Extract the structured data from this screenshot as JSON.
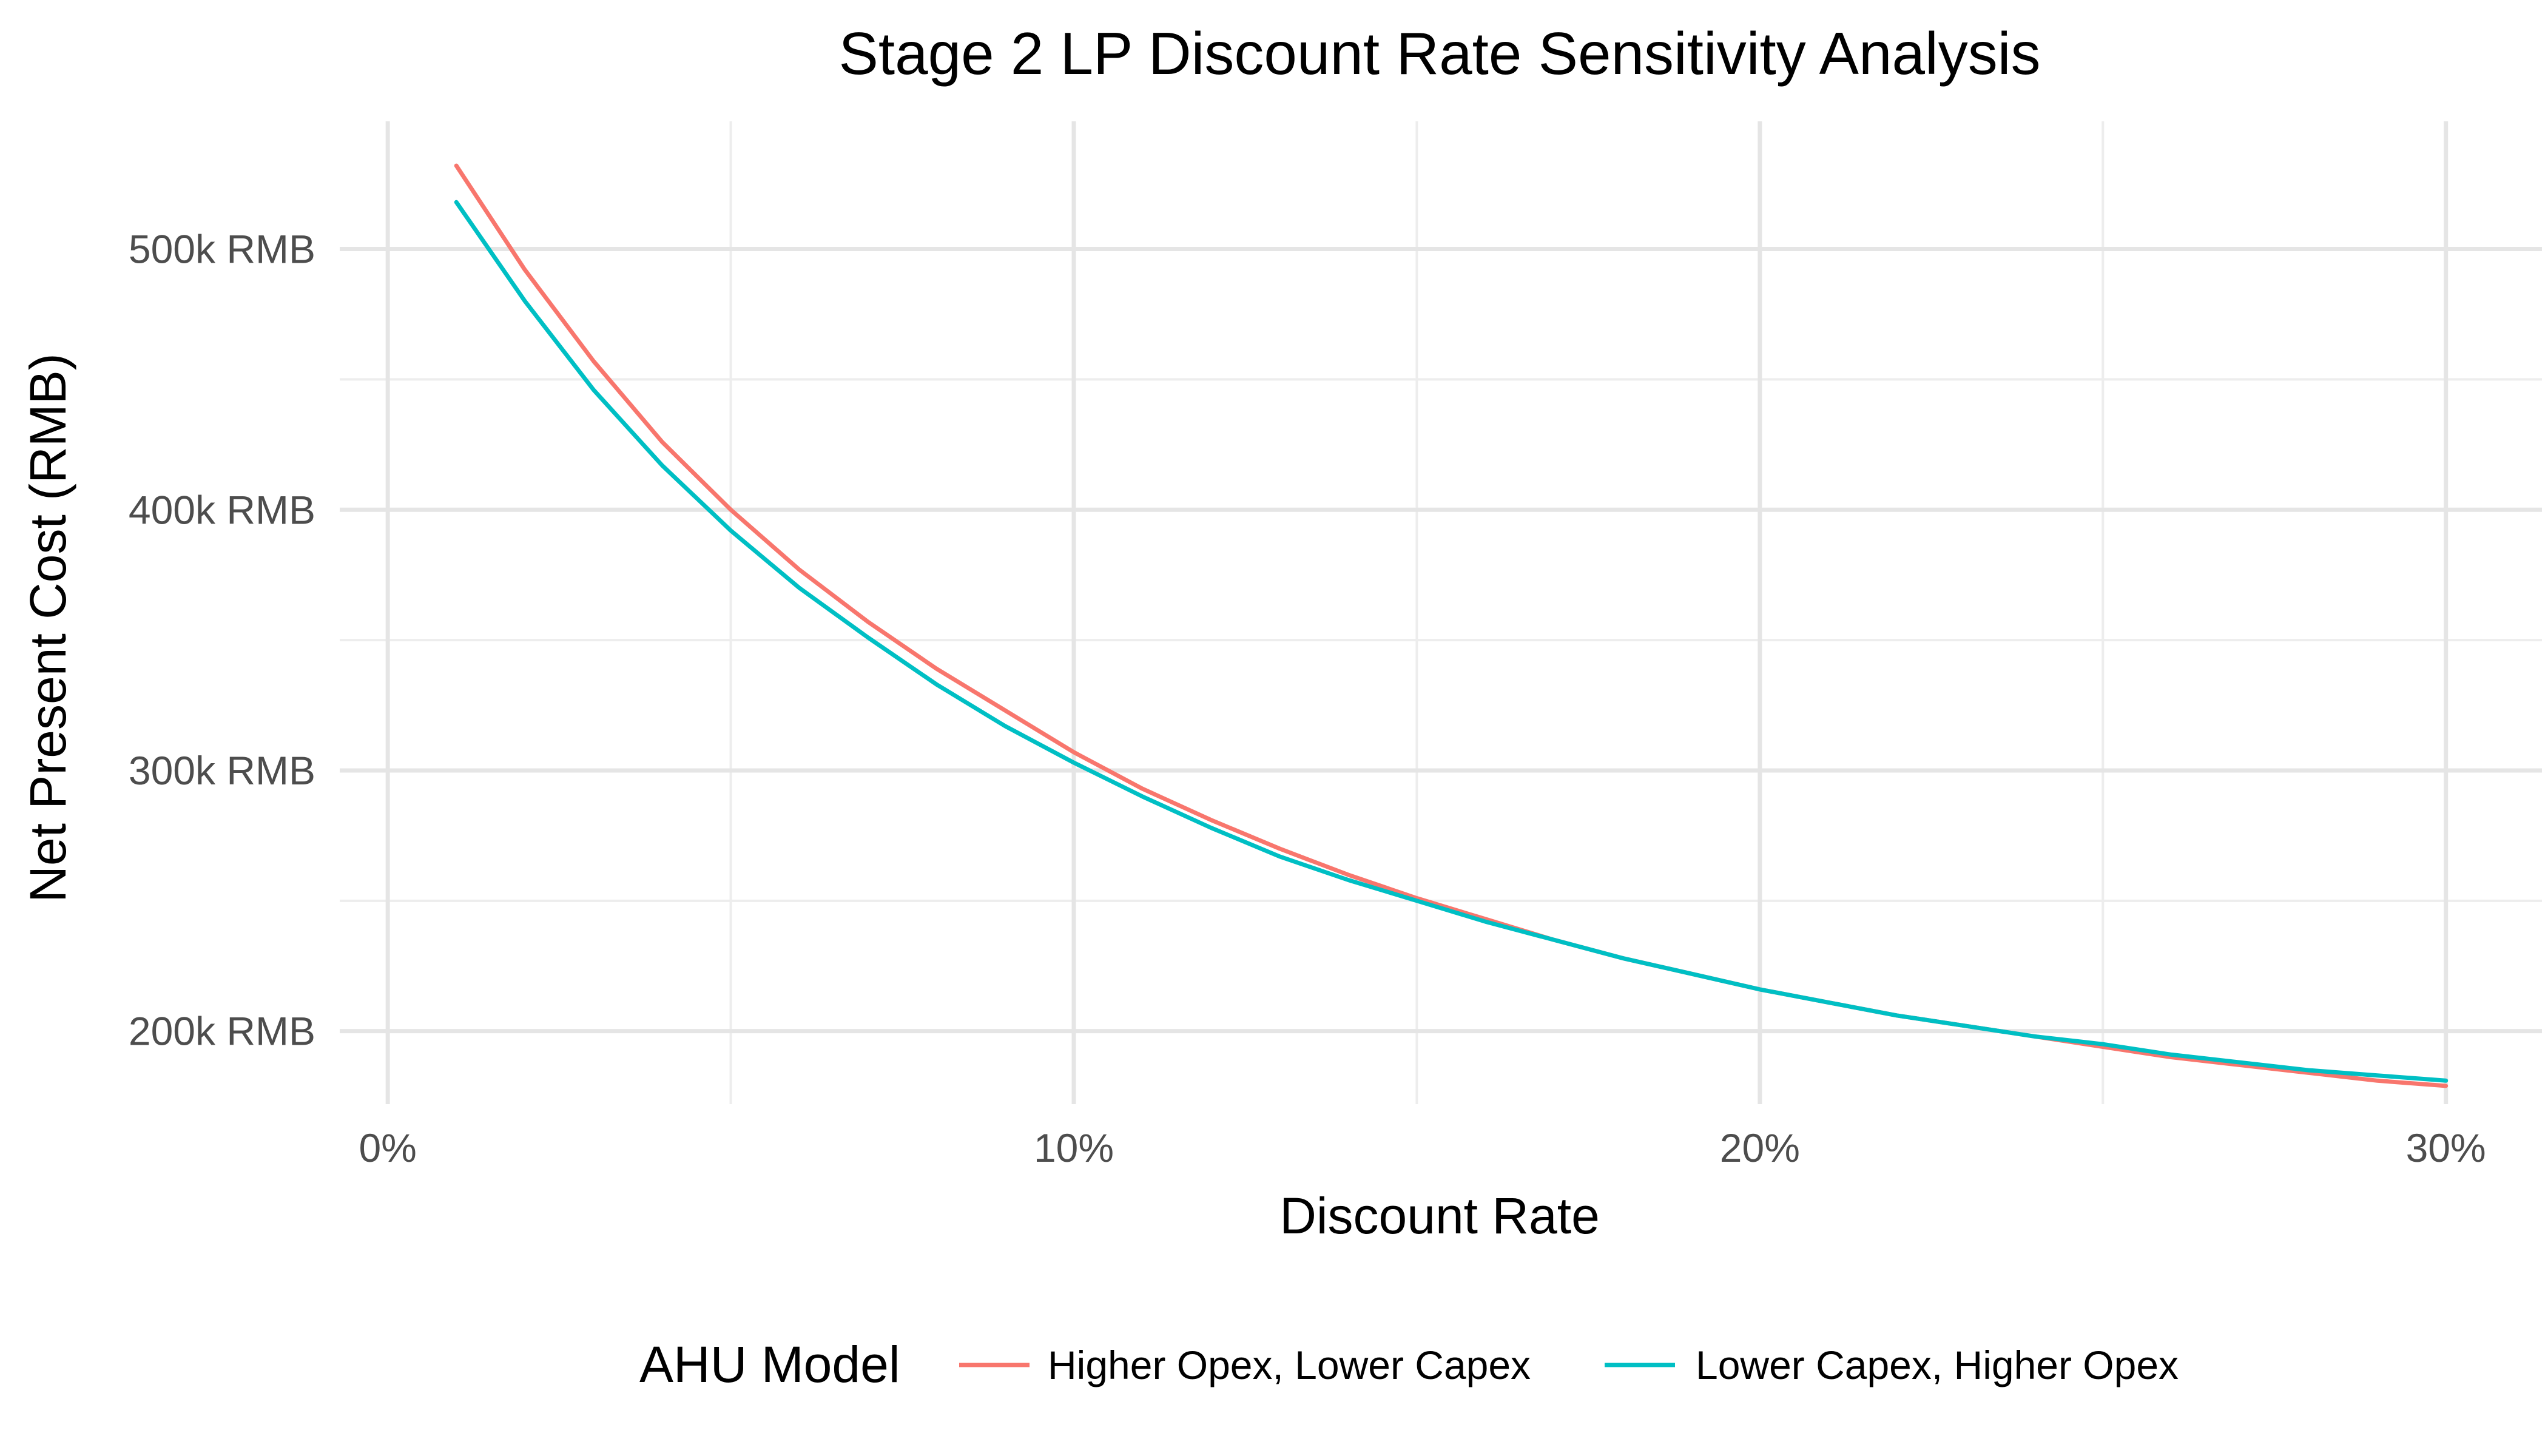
{
  "chart_data": {
    "type": "line",
    "title": "Stage 2 LP Discount Rate Sensitivity Analysis",
    "xlabel": "Discount Rate",
    "ylabel": "Net Present Cost (RMB)",
    "x_ticks": [
      {
        "value": 0,
        "label": "0%"
      },
      {
        "value": 10,
        "label": "10%"
      },
      {
        "value": 20,
        "label": "20%"
      },
      {
        "value": 30,
        "label": "30%"
      }
    ],
    "x_minor": [
      5,
      15,
      25
    ],
    "y_ticks": [
      {
        "value": 200000,
        "label": "200k RMB"
      },
      {
        "value": 300000,
        "label": "300k RMB"
      },
      {
        "value": 400000,
        "label": "400k RMB"
      },
      {
        "value": 500000,
        "label": "500k RMB"
      }
    ],
    "y_minor": [
      250000,
      350000,
      450000
    ],
    "xlim": [
      -0.7,
      31.4
    ],
    "ylim": [
      172000,
      549000
    ],
    "grid": true,
    "legend_title": "AHU Model",
    "legend_position": "bottom",
    "x": [
      1,
      2,
      3,
      4,
      5,
      6,
      7,
      8,
      9,
      10,
      11,
      12,
      13,
      14,
      15,
      16,
      17,
      18,
      19,
      20,
      21,
      22,
      23,
      24,
      25,
      26,
      27,
      28,
      29,
      30
    ],
    "series": [
      {
        "name": "Higher Opex, Lower Capex",
        "color": "#F8766D",
        "values": [
          532000,
          492000,
          457000,
          426000,
          400000,
          377000,
          357000,
          339000,
          323000,
          307000,
          293000,
          281000,
          270000,
          260000,
          251000,
          243000,
          235000,
          228000,
          222000,
          216000,
          211000,
          206000,
          202000,
          198000,
          194000,
          190000,
          187000,
          184000,
          181000,
          179000
        ]
      },
      {
        "name": "Lower Capex, Higher Opex",
        "color": "#00BFC4",
        "values": [
          518000,
          480000,
          446000,
          417000,
          392000,
          370000,
          351000,
          333000,
          317000,
          303000,
          290000,
          278000,
          267000,
          258000,
          250000,
          242000,
          235000,
          228000,
          222000,
          216000,
          211000,
          206000,
          202000,
          198000,
          195000,
          191000,
          188000,
          185000,
          183000,
          181000
        ]
      }
    ]
  }
}
